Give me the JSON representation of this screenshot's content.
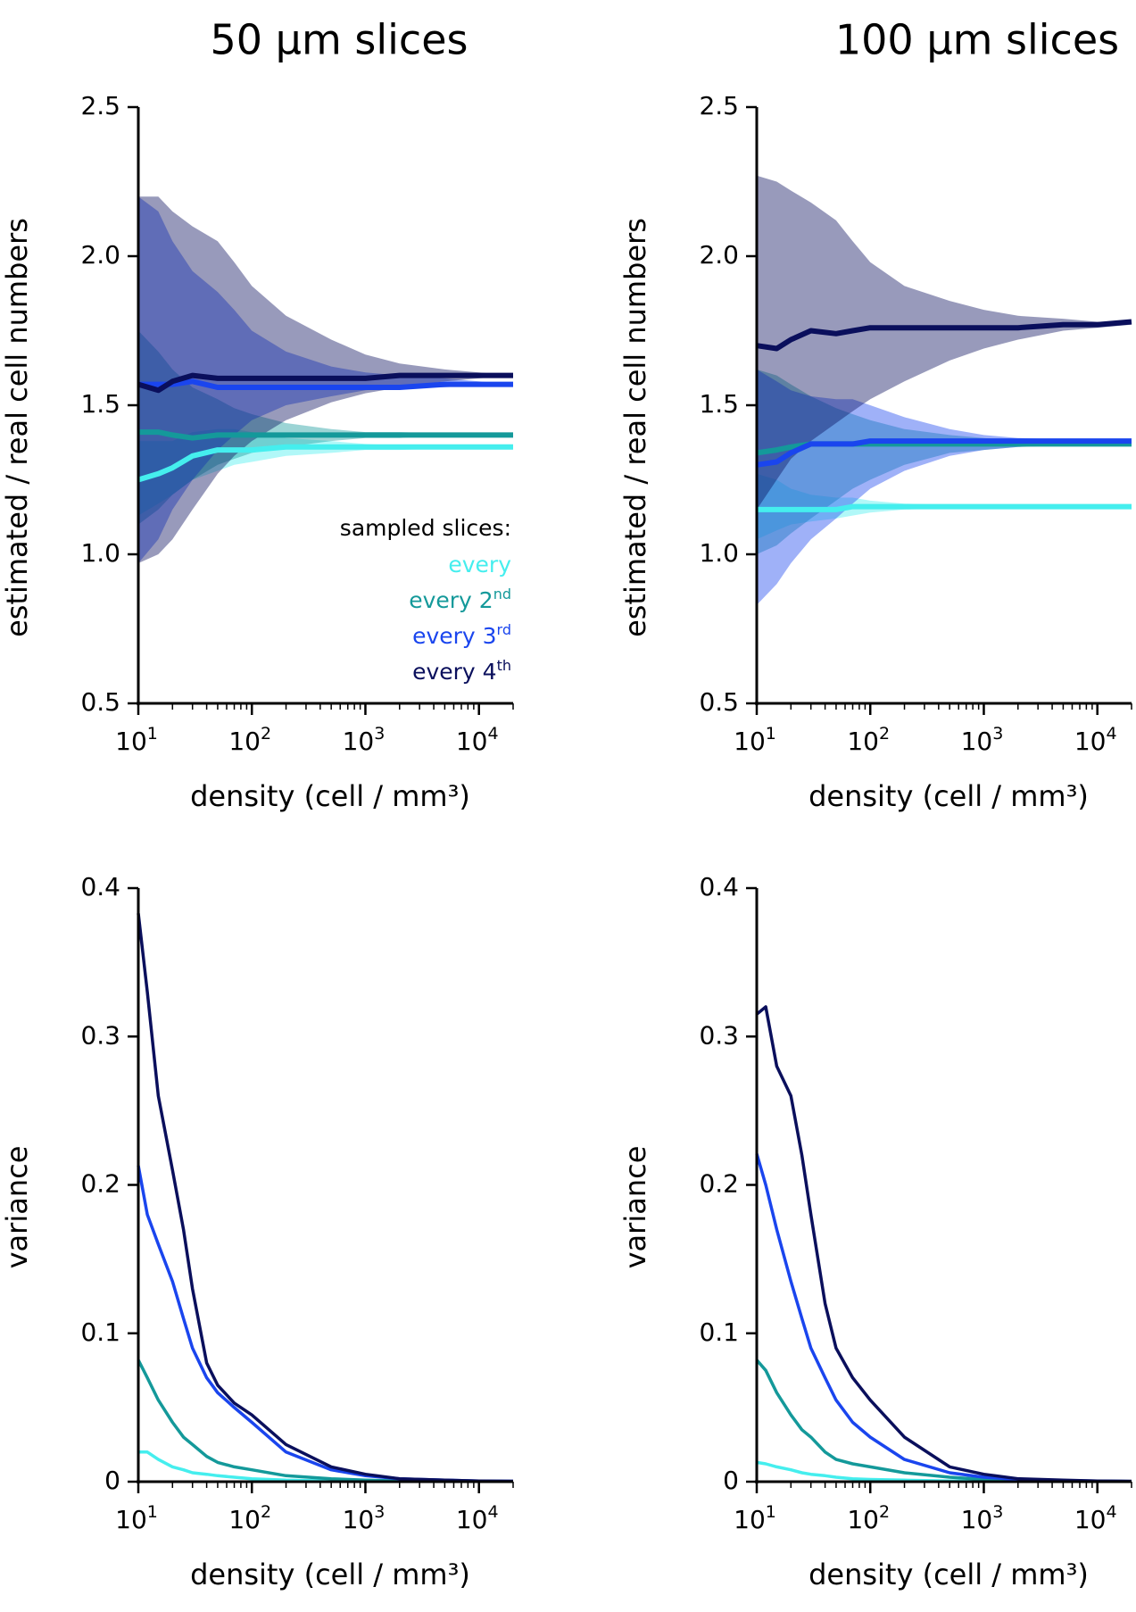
{
  "colors": {
    "every": "#45eeee",
    "every_2nd": "#14999a",
    "every_3rd": "#1a45ee",
    "every_4th": "#0a0f5c"
  },
  "legend": {
    "title": "sampled slices:",
    "items": [
      {
        "key": "every",
        "text": "every",
        "sup": ""
      },
      {
        "key": "every_2nd",
        "text": "every 2",
        "sup": "nd"
      },
      {
        "key": "every_3rd",
        "text": "every 3",
        "sup": "rd"
      },
      {
        "key": "every_4th",
        "text": "every 4",
        "sup": "th"
      }
    ]
  },
  "chart_data": [
    {
      "type": "area",
      "title": "50 µm slices",
      "xlabel": "density (cell / mm³)",
      "ylabel": "estimated / real cell numbers",
      "xscale": "log",
      "xlim": [
        10,
        20000
      ],
      "ylim": [
        0.5,
        2.5
      ],
      "x_tick_labels": [
        "10",
        "1",
        "10",
        "2",
        "10",
        "3",
        "10",
        "4"
      ],
      "y_tick_labels": [
        "0.5",
        "1.0",
        "1.5",
        "2.0",
        "2.5"
      ],
      "x": [
        10,
        15,
        20,
        30,
        50,
        70,
        100,
        200,
        500,
        1000,
        2000,
        5000,
        10000,
        20000
      ],
      "series": [
        {
          "name": "every",
          "mean": [
            1.25,
            1.27,
            1.29,
            1.33,
            1.35,
            1.35,
            1.35,
            1.36,
            1.36,
            1.36,
            1.36,
            1.36,
            1.36,
            1.36
          ],
          "lower": [
            1.13,
            1.17,
            1.2,
            1.25,
            1.28,
            1.3,
            1.31,
            1.33,
            1.34,
            1.35,
            1.35,
            1.355,
            1.355,
            1.36
          ],
          "upper": [
            1.38,
            1.38,
            1.38,
            1.41,
            1.42,
            1.42,
            1.41,
            1.39,
            1.38,
            1.37,
            1.365,
            1.365,
            1.36,
            1.36
          ]
        },
        {
          "name": "every 2nd",
          "mean": [
            1.41,
            1.41,
            1.4,
            1.39,
            1.4,
            1.4,
            1.4,
            1.4,
            1.4,
            1.4,
            1.4,
            1.4,
            1.4,
            1.4
          ],
          "lower": [
            1.1,
            1.15,
            1.2,
            1.25,
            1.3,
            1.32,
            1.34,
            1.36,
            1.38,
            1.39,
            1.39,
            1.4,
            1.4,
            1.4
          ],
          "upper": [
            1.75,
            1.68,
            1.62,
            1.56,
            1.52,
            1.49,
            1.47,
            1.44,
            1.42,
            1.41,
            1.41,
            1.405,
            1.405,
            1.4
          ]
        },
        {
          "name": "every 3rd",
          "mean": [
            1.57,
            1.57,
            1.57,
            1.58,
            1.56,
            1.56,
            1.56,
            1.56,
            1.56,
            1.56,
            1.56,
            1.57,
            1.57,
            1.57
          ],
          "lower": [
            0.97,
            1.05,
            1.15,
            1.25,
            1.35,
            1.4,
            1.45,
            1.5,
            1.53,
            1.55,
            1.56,
            1.56,
            1.57,
            1.57
          ],
          "upper": [
            2.2,
            2.15,
            2.05,
            1.95,
            1.88,
            1.82,
            1.75,
            1.68,
            1.63,
            1.61,
            1.6,
            1.59,
            1.58,
            1.57
          ]
        },
        {
          "name": "every 4th",
          "mean": [
            1.57,
            1.55,
            1.58,
            1.6,
            1.59,
            1.59,
            1.59,
            1.59,
            1.59,
            1.59,
            1.6,
            1.6,
            1.6,
            1.6
          ],
          "lower": [
            0.97,
            1.0,
            1.05,
            1.15,
            1.27,
            1.33,
            1.38,
            1.45,
            1.51,
            1.54,
            1.56,
            1.58,
            1.59,
            1.6
          ],
          "upper": [
            2.2,
            2.2,
            2.15,
            2.1,
            2.05,
            1.98,
            1.9,
            1.8,
            1.72,
            1.67,
            1.64,
            1.62,
            1.61,
            1.6
          ]
        }
      ]
    },
    {
      "type": "area",
      "title": "100 µm slices",
      "xlabel": "density (cell / mm³)",
      "ylabel": "estimated / real cell numbers",
      "xscale": "log",
      "xlim": [
        10,
        20000
      ],
      "ylim": [
        0.5,
        2.5
      ],
      "x_tick_labels": [
        "10",
        "1",
        "10",
        "2",
        "10",
        "3",
        "10",
        "4"
      ],
      "y_tick_labels": [
        "0.5",
        "1.0",
        "1.5",
        "2.0",
        "2.5"
      ],
      "x": [
        10,
        15,
        20,
        30,
        50,
        70,
        100,
        200,
        500,
        1000,
        2000,
        5000,
        10000,
        20000
      ],
      "series": [
        {
          "name": "every",
          "mean": [
            1.15,
            1.15,
            1.15,
            1.15,
            1.15,
            1.16,
            1.16,
            1.16,
            1.16,
            1.16,
            1.16,
            1.16,
            1.16,
            1.16
          ],
          "lower": [
            1.05,
            1.08,
            1.1,
            1.11,
            1.12,
            1.13,
            1.14,
            1.15,
            1.155,
            1.16,
            1.16,
            1.16,
            1.16,
            1.16
          ],
          "upper": [
            1.27,
            1.25,
            1.22,
            1.2,
            1.19,
            1.19,
            1.18,
            1.17,
            1.165,
            1.165,
            1.16,
            1.16,
            1.16,
            1.16
          ]
        },
        {
          "name": "every 2nd",
          "mean": [
            1.34,
            1.35,
            1.36,
            1.37,
            1.37,
            1.37,
            1.37,
            1.37,
            1.37,
            1.37,
            1.37,
            1.37,
            1.37,
            1.37
          ],
          "lower": [
            1.0,
            1.03,
            1.07,
            1.12,
            1.18,
            1.22,
            1.25,
            1.3,
            1.34,
            1.35,
            1.36,
            1.365,
            1.37,
            1.37
          ],
          "upper": [
            1.62,
            1.6,
            1.57,
            1.53,
            1.49,
            1.47,
            1.45,
            1.42,
            1.4,
            1.39,
            1.38,
            1.375,
            1.37,
            1.37
          ]
        },
        {
          "name": "every 3rd",
          "mean": [
            1.3,
            1.31,
            1.34,
            1.37,
            1.37,
            1.37,
            1.38,
            1.38,
            1.38,
            1.38,
            1.38,
            1.38,
            1.38,
            1.38
          ],
          "lower": [
            0.83,
            0.9,
            0.97,
            1.05,
            1.12,
            1.17,
            1.22,
            1.28,
            1.33,
            1.35,
            1.36,
            1.37,
            1.375,
            1.38
          ],
          "upper": [
            1.62,
            1.58,
            1.55,
            1.53,
            1.52,
            1.52,
            1.5,
            1.46,
            1.42,
            1.4,
            1.39,
            1.385,
            1.38,
            1.38
          ]
        },
        {
          "name": "every 4th",
          "mean": [
            1.7,
            1.69,
            1.72,
            1.75,
            1.74,
            1.75,
            1.76,
            1.76,
            1.76,
            1.76,
            1.76,
            1.77,
            1.77,
            1.78
          ],
          "lower": [
            1.15,
            1.25,
            1.32,
            1.38,
            1.44,
            1.48,
            1.52,
            1.58,
            1.65,
            1.69,
            1.72,
            1.75,
            1.76,
            1.77
          ],
          "upper": [
            2.27,
            2.25,
            2.22,
            2.18,
            2.12,
            2.05,
            1.98,
            1.9,
            1.85,
            1.82,
            1.8,
            1.79,
            1.78,
            1.78
          ]
        }
      ]
    },
    {
      "type": "line",
      "title": "",
      "xlabel": "density (cell / mm³)",
      "ylabel": "variance",
      "xscale": "log",
      "xlim": [
        10,
        20000
      ],
      "ylim": [
        0,
        0.4
      ],
      "x_tick_labels": [
        "10",
        "1",
        "10",
        "2",
        "10",
        "3",
        "10",
        "4"
      ],
      "y_tick_labels": [
        "0",
        "0.1",
        "0.2",
        "0.3",
        "0.4"
      ],
      "x": [
        10,
        12,
        15,
        20,
        25,
        30,
        40,
        50,
        70,
        100,
        200,
        500,
        1000,
        2000,
        5000,
        10000,
        20000
      ],
      "series": [
        {
          "name": "every",
          "values": [
            0.02,
            0.02,
            0.015,
            0.01,
            0.008,
            0.006,
            0.005,
            0.004,
            0.003,
            0.002,
            0.001,
            0.0005,
            0.0003,
            0.0002,
            0.0001,
            0.0001,
            0.0001
          ]
        },
        {
          "name": "every 2nd",
          "values": [
            0.082,
            0.07,
            0.055,
            0.04,
            0.03,
            0.025,
            0.017,
            0.013,
            0.01,
            0.008,
            0.004,
            0.002,
            0.001,
            0.0005,
            0.0003,
            0.0002,
            0.0001
          ]
        },
        {
          "name": "every 3rd",
          "values": [
            0.213,
            0.18,
            0.16,
            0.135,
            0.11,
            0.09,
            0.07,
            0.06,
            0.05,
            0.04,
            0.02,
            0.008,
            0.004,
            0.002,
            0.001,
            0.0005,
            0.0003
          ]
        },
        {
          "name": "every 4th",
          "values": [
            0.383,
            0.33,
            0.26,
            0.21,
            0.17,
            0.13,
            0.08,
            0.065,
            0.053,
            0.045,
            0.025,
            0.01,
            0.005,
            0.002,
            0.001,
            0.0005,
            0.0003
          ]
        }
      ]
    },
    {
      "type": "line",
      "title": "",
      "xlabel": "density (cell / mm³)",
      "ylabel": "variance",
      "xscale": "log",
      "xlim": [
        10,
        20000
      ],
      "ylim": [
        0,
        0.4
      ],
      "x_tick_labels": [
        "10",
        "1",
        "10",
        "2",
        "10",
        "3",
        "10",
        "4"
      ],
      "y_tick_labels": [
        "0",
        "0.1",
        "0.2",
        "0.3",
        "0.4"
      ],
      "x": [
        10,
        12,
        15,
        20,
        25,
        30,
        40,
        50,
        70,
        100,
        200,
        500,
        1000,
        2000,
        5000,
        10000,
        20000
      ],
      "series": [
        {
          "name": "every",
          "values": [
            0.013,
            0.012,
            0.01,
            0.008,
            0.006,
            0.005,
            0.004,
            0.003,
            0.002,
            0.0015,
            0.001,
            0.0005,
            0.0003,
            0.0002,
            0.0001,
            0.0001,
            0.0001
          ]
        },
        {
          "name": "every 2nd",
          "values": [
            0.082,
            0.075,
            0.06,
            0.045,
            0.035,
            0.03,
            0.02,
            0.015,
            0.012,
            0.01,
            0.006,
            0.003,
            0.0015,
            0.001,
            0.0005,
            0.0003,
            0.0002
          ]
        },
        {
          "name": "every 3rd",
          "values": [
            0.221,
            0.2,
            0.17,
            0.135,
            0.11,
            0.09,
            0.07,
            0.055,
            0.04,
            0.03,
            0.015,
            0.006,
            0.003,
            0.0015,
            0.0008,
            0.0004,
            0.0002
          ]
        },
        {
          "name": "every 4th",
          "values": [
            0.315,
            0.32,
            0.28,
            0.26,
            0.22,
            0.18,
            0.12,
            0.09,
            0.07,
            0.055,
            0.03,
            0.01,
            0.005,
            0.002,
            0.001,
            0.0005,
            0.0003
          ]
        }
      ]
    }
  ]
}
